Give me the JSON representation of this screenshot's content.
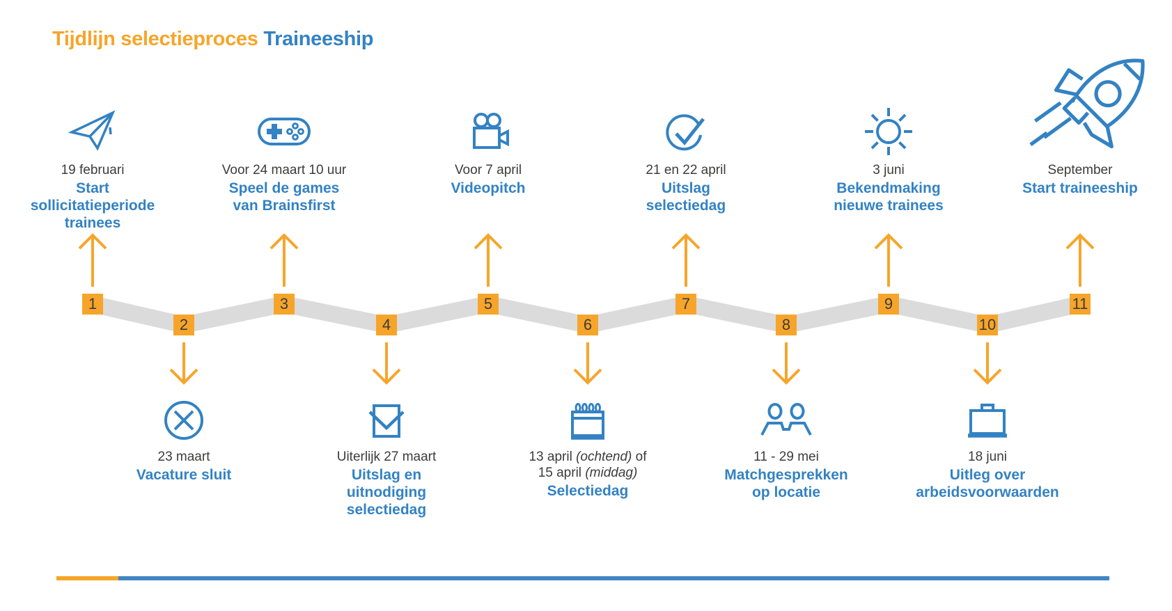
{
  "title": {
    "part1": "Tijdlijn selectieproces",
    "part2": "Traineeship"
  },
  "colors": {
    "orange": "#F6A52A",
    "blue": "#3382C3",
    "dark_text": "#3C3C3B",
    "band_gray": "#DBDBDB"
  },
  "items": [
    {
      "number": "1",
      "position": "top",
      "icon": "paper-plane",
      "date": "19 februari",
      "label": "Start\nsollicitatieperiode\ntrainees"
    },
    {
      "number": "2",
      "position": "bottom",
      "icon": "cross-circle",
      "date": "23 maart",
      "label": "Vacature sluit"
    },
    {
      "number": "3",
      "position": "top",
      "icon": "game-controller",
      "date": "Voor 24 maart 10 uur",
      "label": "Speel de games\nvan Brainsfirst"
    },
    {
      "number": "4",
      "position": "bottom",
      "icon": "envelope",
      "date": "Uiterlijk 27 maart",
      "label": "Uitslag en\nuitnodiging\nselectiedag"
    },
    {
      "number": "5",
      "position": "top",
      "icon": "video-camera",
      "date": "Voor 7 april",
      "label": "Videopitch"
    },
    {
      "number": "6",
      "position": "bottom",
      "icon": "calendar",
      "date": "13 april (ochtend) of\n15 april (middag)",
      "label": "Selectiedag"
    },
    {
      "number": "7",
      "position": "top",
      "icon": "check-circle",
      "date": "21 en 22 april",
      "label": "Uitslag\nselectiedag"
    },
    {
      "number": "8",
      "position": "bottom",
      "icon": "people",
      "date": "11 - 29 mei",
      "label": "Matchgesprekken\nop locatie"
    },
    {
      "number": "9",
      "position": "top",
      "icon": "sun",
      "date": "3 juni",
      "label": "Bekendmaking\nnieuwe trainees"
    },
    {
      "number": "10",
      "position": "bottom",
      "icon": "briefcase",
      "date": "18 juni",
      "label": "Uitleg over\narbeidsvoorwaarden"
    },
    {
      "number": "11",
      "position": "top",
      "icon": "rocket",
      "date": "September",
      "label": "Start traineeship"
    }
  ]
}
